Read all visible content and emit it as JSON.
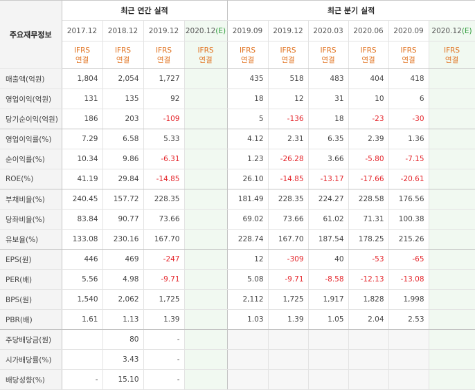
{
  "header": {
    "label_column": "주요재무정보",
    "annual_group": "최근 연간 실적",
    "quarterly_group": "최근 분기 실적"
  },
  "annual_periods": [
    {
      "label": "2017.12",
      "est": ""
    },
    {
      "label": "2018.12",
      "est": ""
    },
    {
      "label": "2019.12",
      "est": ""
    },
    {
      "label": "2020.12",
      "est": "(E)"
    }
  ],
  "quarterly_periods": [
    {
      "label": "2019.09",
      "est": ""
    },
    {
      "label": "2019.12",
      "est": ""
    },
    {
      "label": "2020.03",
      "est": ""
    },
    {
      "label": "2020.06",
      "est": ""
    },
    {
      "label": "2020.09",
      "est": ""
    },
    {
      "label": "2020.12",
      "est": "(E)"
    }
  ],
  "ifrs_label": {
    "line1": "IFRS",
    "line2": "연결"
  },
  "rows": [
    {
      "label": "매출액(억원)",
      "annual": [
        "1,804",
        "2,054",
        "1,727",
        ""
      ],
      "quarterly": [
        "435",
        "518",
        "483",
        "404",
        "418",
        ""
      ]
    },
    {
      "label": "영업이익(억원)",
      "annual": [
        "131",
        "135",
        "92",
        ""
      ],
      "quarterly": [
        "18",
        "12",
        "31",
        "10",
        "6",
        ""
      ]
    },
    {
      "label": "당기순이익(억원)",
      "annual": [
        "186",
        "203",
        "-109",
        ""
      ],
      "quarterly": [
        "5",
        "-136",
        "18",
        "-23",
        "-30",
        ""
      ]
    },
    {
      "label": "영업이익률(%)",
      "annual": [
        "7.29",
        "6.58",
        "5.33",
        ""
      ],
      "quarterly": [
        "4.12",
        "2.31",
        "6.35",
        "2.39",
        "1.36",
        ""
      ]
    },
    {
      "label": "순이익률(%)",
      "annual": [
        "10.34",
        "9.86",
        "-6.31",
        ""
      ],
      "quarterly": [
        "1.23",
        "-26.28",
        "3.66",
        "-5.80",
        "-7.15",
        ""
      ]
    },
    {
      "label": "ROE(%)",
      "annual": [
        "41.19",
        "29.84",
        "-14.85",
        ""
      ],
      "quarterly": [
        "26.10",
        "-14.85",
        "-13.17",
        "-17.66",
        "-20.61",
        ""
      ]
    },
    {
      "label": "부채비율(%)",
      "annual": [
        "240.45",
        "157.72",
        "228.35",
        ""
      ],
      "quarterly": [
        "181.49",
        "228.35",
        "224.27",
        "228.58",
        "176.56",
        ""
      ]
    },
    {
      "label": "당좌비율(%)",
      "annual": [
        "83.84",
        "90.77",
        "73.66",
        ""
      ],
      "quarterly": [
        "69.02",
        "73.66",
        "61.02",
        "71.31",
        "100.38",
        ""
      ]
    },
    {
      "label": "유보율(%)",
      "annual": [
        "133.08",
        "230.16",
        "167.70",
        ""
      ],
      "quarterly": [
        "228.74",
        "167.70",
        "187.54",
        "178.25",
        "215.26",
        ""
      ]
    },
    {
      "label": "EPS(원)",
      "annual": [
        "446",
        "469",
        "-247",
        ""
      ],
      "quarterly": [
        "12",
        "-309",
        "40",
        "-53",
        "-65",
        ""
      ]
    },
    {
      "label": "PER(배)",
      "annual": [
        "5.56",
        "4.98",
        "-9.71",
        ""
      ],
      "quarterly": [
        "5.08",
        "-9.71",
        "-8.58",
        "-12.13",
        "-13.08",
        ""
      ]
    },
    {
      "label": "BPS(원)",
      "annual": [
        "1,540",
        "2,062",
        "1,725",
        ""
      ],
      "quarterly": [
        "2,112",
        "1,725",
        "1,917",
        "1,828",
        "1,998",
        ""
      ]
    },
    {
      "label": "PBR(배)",
      "annual": [
        "1.61",
        "1.13",
        "1.39",
        ""
      ],
      "quarterly": [
        "1.03",
        "1.39",
        "1.05",
        "2.04",
        "2.53",
        ""
      ]
    },
    {
      "label": "주당배당금(원)",
      "annual": [
        "",
        "80",
        "-",
        ""
      ],
      "quarterly": [
        "",
        "",
        "",
        "",
        "",
        ""
      ]
    },
    {
      "label": "시가배당률(%)",
      "annual": [
        "",
        "3.43",
        "-",
        ""
      ],
      "quarterly": [
        "",
        "",
        "",
        "",
        "",
        ""
      ]
    },
    {
      "label": "배당성향(%)",
      "annual": [
        "-",
        "15.10",
        "-",
        ""
      ],
      "quarterly": [
        "",
        "",
        "",
        "",
        "",
        ""
      ]
    }
  ],
  "colors": {
    "negative": "#e4242a",
    "ifrs": "#e0701c",
    "estimate_bg": "#f1f9f1",
    "estimate_mark": "#2e9b3a"
  }
}
